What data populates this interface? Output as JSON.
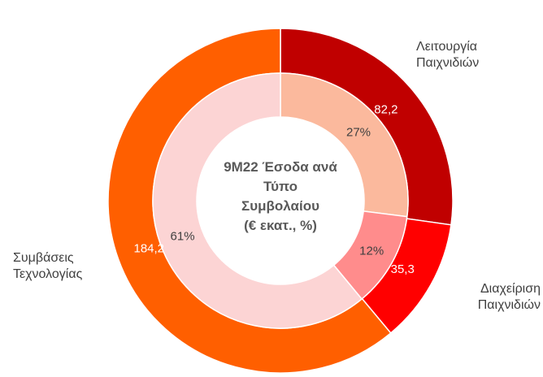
{
  "chart_data": {
    "type": "pie",
    "subtype": "double-donut",
    "title_lines": [
      "9M22 Έσοδα ανά",
      "Τύπο",
      "Συμβολαίου",
      "(€ εκατ., %)"
    ],
    "categories": [
      "Λειτουργία Παιχνιδιών",
      "Διαχείριση Παιχνιδιών",
      "Συμβάσεις Τεχνολογίας"
    ],
    "outer_ring": {
      "values": [
        82.2,
        35.3,
        184.2
      ],
      "labels": [
        "82,2",
        "35,3",
        "184,2"
      ],
      "colors": [
        "#c00000",
        "#ff0000",
        "#ff5f00"
      ]
    },
    "inner_ring": {
      "values": [
        27,
        12,
        61
      ],
      "labels": [
        "27%",
        "12%",
        "61%"
      ],
      "colors": [
        "#fbb99d",
        "#ff8c8c",
        "#fcd4d4"
      ]
    },
    "category_labels": [
      [
        "Λειτουργία",
        "Παιχνιδιών"
      ],
      [
        "Διαχείριση",
        "Παιχνιδιών"
      ],
      [
        "Συμβάσεις",
        "Τεχνολογίας"
      ]
    ]
  }
}
